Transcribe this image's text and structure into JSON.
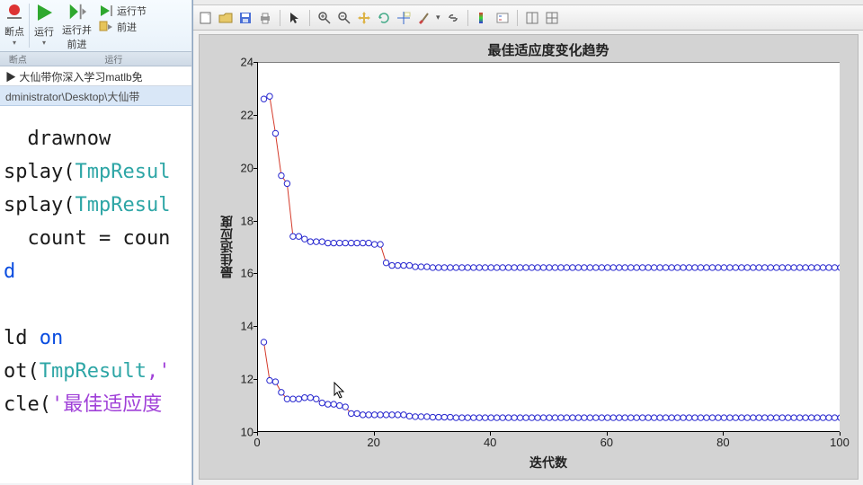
{
  "ribbon": {
    "breakpoint": "断点",
    "run": "运行",
    "run_advance": "运行并\n前进",
    "run_section": "运行节",
    "advance": "前进",
    "group_bp": "断点",
    "group_run": "运行"
  },
  "crumbs": {
    "line1": "▶ 大仙带你深入学习matlb免",
    "line2": "dministrator\\Desktop\\大仙带"
  },
  "code": {
    "l1": "  drawnow",
    "l2a": "splay(",
    "l2b": "TmpResul",
    "l3a": "splay(",
    "l3b": "TmpResul",
    "l4": "  count = coun",
    "l5": "d",
    "l6": "",
    "l7a": "ld ",
    "l7b": "on",
    "l8a": "ot(",
    "l8b": "TmpResult",
    "l8c": ",'",
    "l9a": "cle(",
    "l9b": "'最佳适应度"
  },
  "figure": {
    "title": "最佳适应度变化趋势",
    "xlabel": "迭代数",
    "ylabel": "最佳适应度",
    "xlim": [
      0,
      100
    ],
    "xtick_step": 20,
    "ylim": [
      10,
      24
    ],
    "ytick_step": 2,
    "axes_bg": "#ffffff",
    "panel_bg": "#d3d3d3",
    "line_color": "#d43a2a",
    "marker_edge": "#2828cf",
    "marker_face": "#ffffff",
    "marker_r": 3.2,
    "line_w": 1,
    "title_fontsize": 15,
    "label_fontsize": 14,
    "series": [
      [
        [
          1,
          22.6
        ],
        [
          2,
          22.7
        ],
        [
          3,
          21.3
        ],
        [
          4,
          19.7
        ],
        [
          5,
          19.4
        ],
        [
          6,
          17.4
        ],
        [
          7,
          17.4
        ],
        [
          8,
          17.3
        ],
        [
          9,
          17.2
        ],
        [
          10,
          17.2
        ],
        [
          11,
          17.2
        ],
        [
          12,
          17.15
        ],
        [
          13,
          17.15
        ],
        [
          14,
          17.15
        ],
        [
          15,
          17.15
        ],
        [
          16,
          17.15
        ],
        [
          17,
          17.15
        ],
        [
          18,
          17.15
        ],
        [
          19,
          17.15
        ],
        [
          20,
          17.1
        ],
        [
          21,
          17.1
        ],
        [
          22,
          16.4
        ],
        [
          23,
          16.3
        ],
        [
          24,
          16.3
        ],
        [
          25,
          16.3
        ],
        [
          26,
          16.3
        ],
        [
          27,
          16.25
        ],
        [
          28,
          16.25
        ],
        [
          29,
          16.25
        ],
        [
          30,
          16.22
        ],
        [
          31,
          16.22
        ],
        [
          32,
          16.22
        ],
        [
          33,
          16.22
        ],
        [
          34,
          16.22
        ],
        [
          35,
          16.22
        ],
        [
          36,
          16.22
        ],
        [
          37,
          16.22
        ],
        [
          38,
          16.22
        ],
        [
          39,
          16.22
        ],
        [
          40,
          16.22
        ],
        [
          41,
          16.22
        ],
        [
          42,
          16.22
        ],
        [
          43,
          16.22
        ],
        [
          44,
          16.22
        ],
        [
          45,
          16.22
        ],
        [
          46,
          16.22
        ],
        [
          47,
          16.22
        ],
        [
          48,
          16.22
        ],
        [
          49,
          16.22
        ],
        [
          50,
          16.22
        ],
        [
          51,
          16.22
        ],
        [
          52,
          16.22
        ],
        [
          53,
          16.22
        ],
        [
          54,
          16.22
        ],
        [
          55,
          16.22
        ],
        [
          56,
          16.22
        ],
        [
          57,
          16.22
        ],
        [
          58,
          16.22
        ],
        [
          59,
          16.22
        ],
        [
          60,
          16.22
        ],
        [
          61,
          16.22
        ],
        [
          62,
          16.22
        ],
        [
          63,
          16.22
        ],
        [
          64,
          16.22
        ],
        [
          65,
          16.22
        ],
        [
          66,
          16.22
        ],
        [
          67,
          16.22
        ],
        [
          68,
          16.22
        ],
        [
          69,
          16.22
        ],
        [
          70,
          16.22
        ],
        [
          71,
          16.22
        ],
        [
          72,
          16.22
        ],
        [
          73,
          16.22
        ],
        [
          74,
          16.22
        ],
        [
          75,
          16.22
        ],
        [
          76,
          16.22
        ],
        [
          77,
          16.22
        ],
        [
          78,
          16.22
        ],
        [
          79,
          16.22
        ],
        [
          80,
          16.22
        ],
        [
          81,
          16.22
        ],
        [
          82,
          16.22
        ],
        [
          83,
          16.22
        ],
        [
          84,
          16.22
        ],
        [
          85,
          16.22
        ],
        [
          86,
          16.22
        ],
        [
          87,
          16.22
        ],
        [
          88,
          16.22
        ],
        [
          89,
          16.22
        ],
        [
          90,
          16.22
        ],
        [
          91,
          16.22
        ],
        [
          92,
          16.22
        ],
        [
          93,
          16.22
        ],
        [
          94,
          16.22
        ],
        [
          95,
          16.22
        ],
        [
          96,
          16.22
        ],
        [
          97,
          16.22
        ],
        [
          98,
          16.22
        ],
        [
          99,
          16.22
        ],
        [
          100,
          16.22
        ]
      ],
      [
        [
          1,
          13.4
        ],
        [
          2,
          11.95
        ],
        [
          3,
          11.9
        ],
        [
          4,
          11.5
        ],
        [
          5,
          11.25
        ],
        [
          6,
          11.25
        ],
        [
          7,
          11.25
        ],
        [
          8,
          11.3
        ],
        [
          9,
          11.3
        ],
        [
          10,
          11.25
        ],
        [
          11,
          11.1
        ],
        [
          12,
          11.05
        ],
        [
          13,
          11.05
        ],
        [
          14,
          11.0
        ],
        [
          15,
          10.95
        ],
        [
          16,
          10.7
        ],
        [
          17,
          10.7
        ],
        [
          18,
          10.65
        ],
        [
          19,
          10.65
        ],
        [
          20,
          10.65
        ],
        [
          21,
          10.65
        ],
        [
          22,
          10.65
        ],
        [
          23,
          10.65
        ],
        [
          24,
          10.65
        ],
        [
          25,
          10.65
        ],
        [
          26,
          10.6
        ],
        [
          27,
          10.58
        ],
        [
          28,
          10.58
        ],
        [
          29,
          10.58
        ],
        [
          30,
          10.56
        ],
        [
          31,
          10.56
        ],
        [
          32,
          10.56
        ],
        [
          33,
          10.56
        ],
        [
          34,
          10.54
        ],
        [
          35,
          10.54
        ],
        [
          36,
          10.54
        ],
        [
          37,
          10.54
        ],
        [
          38,
          10.54
        ],
        [
          39,
          10.54
        ],
        [
          40,
          10.54
        ],
        [
          41,
          10.54
        ],
        [
          42,
          10.54
        ],
        [
          43,
          10.54
        ],
        [
          44,
          10.54
        ],
        [
          45,
          10.54
        ],
        [
          46,
          10.54
        ],
        [
          47,
          10.54
        ],
        [
          48,
          10.54
        ],
        [
          49,
          10.54
        ],
        [
          50,
          10.54
        ],
        [
          51,
          10.54
        ],
        [
          52,
          10.54
        ],
        [
          53,
          10.54
        ],
        [
          54,
          10.54
        ],
        [
          55,
          10.54
        ],
        [
          56,
          10.54
        ],
        [
          57,
          10.54
        ],
        [
          58,
          10.54
        ],
        [
          59,
          10.54
        ],
        [
          60,
          10.54
        ],
        [
          61,
          10.54
        ],
        [
          62,
          10.54
        ],
        [
          63,
          10.54
        ],
        [
          64,
          10.54
        ],
        [
          65,
          10.54
        ],
        [
          66,
          10.54
        ],
        [
          67,
          10.54
        ],
        [
          68,
          10.54
        ],
        [
          69,
          10.54
        ],
        [
          70,
          10.54
        ],
        [
          71,
          10.54
        ],
        [
          72,
          10.54
        ],
        [
          73,
          10.54
        ],
        [
          74,
          10.54
        ],
        [
          75,
          10.54
        ],
        [
          76,
          10.54
        ],
        [
          77,
          10.54
        ],
        [
          78,
          10.54
        ],
        [
          79,
          10.54
        ],
        [
          80,
          10.54
        ],
        [
          81,
          10.54
        ],
        [
          82,
          10.54
        ],
        [
          83,
          10.54
        ],
        [
          84,
          10.54
        ],
        [
          85,
          10.54
        ],
        [
          86,
          10.54
        ],
        [
          87,
          10.54
        ],
        [
          88,
          10.54
        ],
        [
          89,
          10.54
        ],
        [
          90,
          10.54
        ],
        [
          91,
          10.54
        ],
        [
          92,
          10.54
        ],
        [
          93,
          10.54
        ],
        [
          94,
          10.54
        ],
        [
          95,
          10.54
        ],
        [
          96,
          10.54
        ],
        [
          97,
          10.54
        ],
        [
          98,
          10.54
        ],
        [
          99,
          10.54
        ],
        [
          100,
          10.54
        ]
      ]
    ]
  },
  "toolbar_icons": [
    "new",
    "open",
    "save",
    "print",
    "arrow",
    "zoom-in",
    "zoom-out",
    "pan",
    "rotate",
    "data-cursor",
    "brush",
    "link",
    "colorbar",
    "legend",
    "layout",
    "grid"
  ]
}
